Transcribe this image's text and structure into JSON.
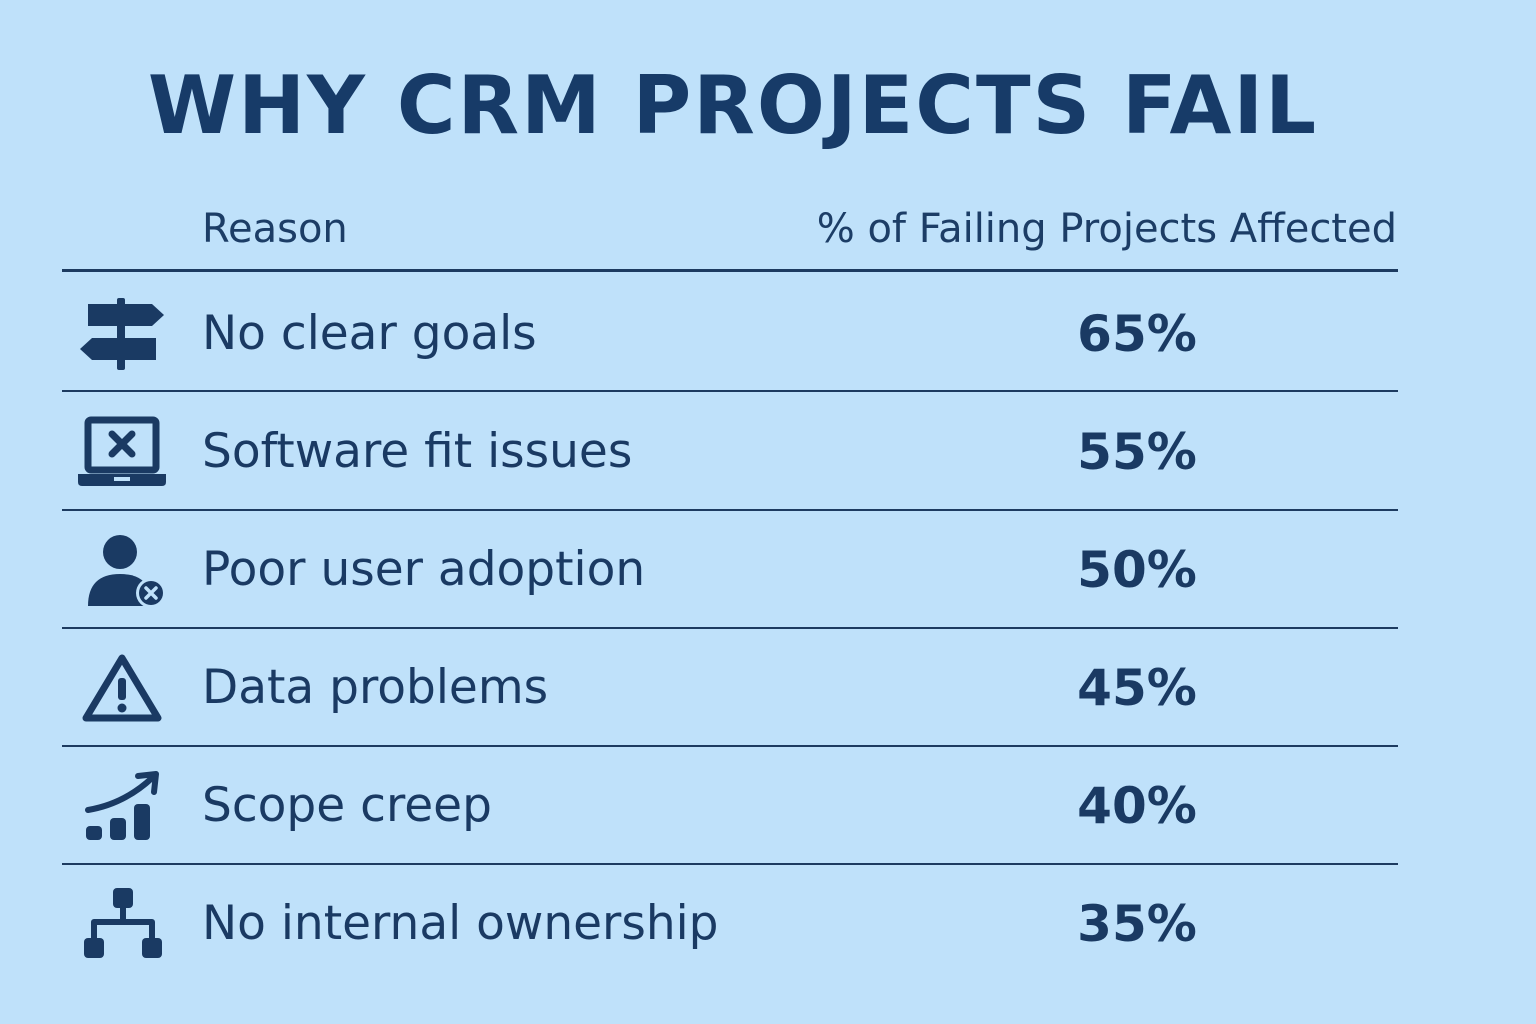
{
  "title": "WHY CRM PROJECTS FAIL",
  "colors": {
    "background": "#bfe1fa",
    "text": "#1a3a63",
    "rule": "#1d3b60"
  },
  "table": {
    "header": {
      "reason": "Reason",
      "percent": "% of Failing Projects Affected"
    },
    "rows": [
      {
        "icon": "signpost-icon",
        "reason": "No clear goals",
        "percent": "65%"
      },
      {
        "icon": "laptop-error-icon",
        "reason": "Software fit issues",
        "percent": "55%"
      },
      {
        "icon": "user-remove-icon",
        "reason": "Poor user adoption",
        "percent": "50%"
      },
      {
        "icon": "warning-triangle-icon",
        "reason": "Data problems",
        "percent": "45%"
      },
      {
        "icon": "growth-chart-icon",
        "reason": "Scope creep",
        "percent": "40%"
      },
      {
        "icon": "org-chart-icon",
        "reason": "No internal ownership",
        "percent": "35%"
      }
    ]
  },
  "chart_data": {
    "type": "table",
    "title": "WHY CRM PROJECTS FAIL",
    "columns": [
      "Reason",
      "% of Failing Projects Affected"
    ],
    "categories": [
      "No clear goals",
      "Software fit issues",
      "Poor user adoption",
      "Data problems",
      "Scope creep",
      "No internal ownership"
    ],
    "values": [
      65,
      55,
      50,
      45,
      40,
      35
    ],
    "unit": "%"
  }
}
